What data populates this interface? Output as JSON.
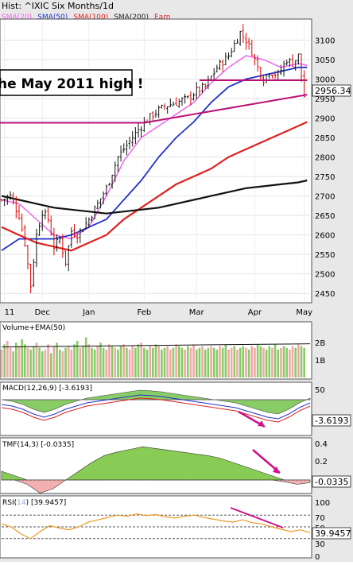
{
  "header": {
    "title": "Hist: ^IXIC Six Months/1d",
    "legend": [
      {
        "label": "SMA(20)",
        "color": "#ee66ee"
      },
      {
        "label": "SMA(50)",
        "color": "#2233cc"
      },
      {
        "label": "SMA(100)",
        "color": "#dd2222"
      },
      {
        "label": "SMA(200)",
        "color": "#222222"
      },
      {
        "label": "Earn",
        "color": "#dd2222"
      }
    ]
  },
  "annotation": {
    "banner_text": "he May 2011 high !",
    "last_price_label": "2956.34"
  },
  "colors": {
    "up": "#111111",
    "down": "#dd0000",
    "sma20": "#ee66ee",
    "sma50": "#2233cc",
    "sma100": "#dd2222",
    "sma200": "#111111",
    "trend": "#bb1177",
    "macd_fill": "#88cc66",
    "macd_neg_fill": "#f3b0b0",
    "tmf_fill": "#88cc55",
    "rsi_line": "#ee9922",
    "vol_up": "#88cc66",
    "vol_down": "#f0a8a8"
  },
  "chart_data": [
    {
      "type": "candlestick",
      "title": "^IXIC Six Months/1d",
      "y_ticks": [
        2450,
        2500,
        2550,
        2600,
        2650,
        2700,
        2750,
        2800,
        2850,
        2900,
        2950,
        3000,
        3050,
        3100
      ],
      "ylim": [
        2430,
        3150
      ],
      "x_labels": [
        {
          "label": "11",
          "day": 1
        },
        {
          "label": "Dec",
          "day": 14
        },
        {
          "label": "Jan",
          "day": 30
        },
        {
          "label": "Feb",
          "day": 49
        },
        {
          "label": "Mar",
          "day": 67
        },
        {
          "label": "Apr",
          "day": 87
        },
        {
          "label": "May",
          "day": 104
        }
      ],
      "num_days": 107,
      "ohlc_points": [
        [
          0,
          2690
        ],
        [
          3,
          2700
        ],
        [
          6,
          2650
        ],
        [
          8,
          2580
        ],
        [
          10,
          2470
        ],
        [
          12,
          2600
        ],
        [
          14,
          2660
        ],
        [
          16,
          2640
        ],
        [
          18,
          2570
        ],
        [
          20,
          2590
        ],
        [
          22,
          2530
        ],
        [
          24,
          2610
        ],
        [
          26,
          2600
        ],
        [
          28,
          2620
        ],
        [
          30,
          2640
        ],
        [
          33,
          2680
        ],
        [
          36,
          2720
        ],
        [
          40,
          2800
        ],
        [
          44,
          2840
        ],
        [
          48,
          2880
        ],
        [
          52,
          2910
        ],
        [
          56,
          2930
        ],
        [
          60,
          2940
        ],
        [
          64,
          2950
        ],
        [
          67,
          2970
        ],
        [
          70,
          2980
        ],
        [
          74,
          3030
        ],
        [
          78,
          3060
        ],
        [
          82,
          3120
        ],
        [
          84,
          3100
        ],
        [
          86,
          3070
        ],
        [
          88,
          3030
        ],
        [
          90,
          3000
        ],
        [
          92,
          3020
        ],
        [
          95,
          3010
        ],
        [
          98,
          3050
        ],
        [
          100,
          3040
        ],
        [
          102,
          3060
        ],
        [
          104,
          2956
        ]
      ],
      "series": [
        {
          "name": "SMA(20)",
          "points": [
            [
              0,
              2690
            ],
            [
              6,
              2680
            ],
            [
              12,
              2640
            ],
            [
              18,
              2600
            ],
            [
              24,
              2590
            ],
            [
              30,
              2620
            ],
            [
              36,
              2700
            ],
            [
              42,
              2790
            ],
            [
              48,
              2850
            ],
            [
              54,
              2880
            ],
            [
              60,
              2910
            ],
            [
              66,
              2940
            ],
            [
              72,
              2990
            ],
            [
              78,
              3030
            ],
            [
              84,
              3060
            ],
            [
              90,
              3050
            ],
            [
              96,
              3030
            ],
            [
              102,
              3040
            ],
            [
              105,
              3035
            ]
          ]
        },
        {
          "name": "SMA(50)",
          "points": [
            [
              0,
              2560
            ],
            [
              6,
              2590
            ],
            [
              12,
              2590
            ],
            [
              18,
              2590
            ],
            [
              24,
              2600
            ],
            [
              30,
              2620
            ],
            [
              36,
              2640
            ],
            [
              42,
              2690
            ],
            [
              48,
              2740
            ],
            [
              54,
              2800
            ],
            [
              60,
              2850
            ],
            [
              66,
              2890
            ],
            [
              72,
              2940
            ],
            [
              78,
              2980
            ],
            [
              84,
              3000
            ],
            [
              90,
              3010
            ],
            [
              96,
              3020
            ],
            [
              102,
              3030
            ],
            [
              105,
              3030
            ]
          ]
        },
        {
          "name": "SMA(100)",
          "points": [
            [
              0,
              2620
            ],
            [
              6,
              2600
            ],
            [
              12,
              2580
            ],
            [
              18,
              2570
            ],
            [
              24,
              2560
            ],
            [
              30,
              2580
            ],
            [
              36,
              2600
            ],
            [
              42,
              2640
            ],
            [
              48,
              2670
            ],
            [
              54,
              2700
            ],
            [
              60,
              2730
            ],
            [
              66,
              2750
            ],
            [
              72,
              2770
            ],
            [
              78,
              2800
            ],
            [
              84,
              2820
            ],
            [
              90,
              2840
            ],
            [
              96,
              2860
            ],
            [
              102,
              2880
            ],
            [
              105,
              2890
            ]
          ]
        },
        {
          "name": "SMA(200)",
          "points": [
            [
              0,
              2700
            ],
            [
              6,
              2690
            ],
            [
              12,
              2680
            ],
            [
              18,
              2670
            ],
            [
              24,
              2665
            ],
            [
              30,
              2660
            ],
            [
              36,
              2655
            ],
            [
              42,
              2660
            ],
            [
              48,
              2665
            ],
            [
              54,
              2670
            ],
            [
              60,
              2680
            ],
            [
              66,
              2690
            ],
            [
              72,
              2700
            ],
            [
              78,
              2710
            ],
            [
              84,
              2720
            ],
            [
              90,
              2725
            ],
            [
              96,
              2730
            ],
            [
              102,
              2735
            ],
            [
              105,
              2740
            ]
          ]
        }
      ],
      "trendlines": [
        {
          "from": [
            -5,
            2888
          ],
          "to": [
            49,
            2888
          ]
        },
        {
          "from": [
            49,
            2888
          ],
          "to": [
            105,
            2960
          ]
        },
        {
          "from": [
            68,
            2997
          ],
          "to": [
            105,
            2997
          ]
        }
      ]
    },
    {
      "type": "bar",
      "title": "Volume+EMA(50)",
      "y_ticks": [
        "2B",
        "1B"
      ],
      "ylim": [
        0,
        2.6
      ],
      "values": [
        1.6,
        1.9,
        2.1,
        1.7,
        1.5,
        2.0,
        1.8,
        2.2,
        1.9,
        1.7,
        1.6,
        1.8,
        2.0,
        1.7,
        1.5,
        1.6,
        1.9,
        1.4,
        1.8,
        2.0,
        1.6,
        1.5,
        1.7,
        1.8,
        1.6,
        1.9,
        2.1,
        1.7,
        1.8,
        2.3,
        1.9,
        1.7,
        1.6,
        1.8,
        2.0,
        1.7,
        1.6,
        1.9,
        1.8,
        1.7,
        1.6,
        1.8,
        1.9,
        1.7,
        1.6,
        1.8,
        1.7,
        1.9,
        2.0,
        1.7,
        1.6,
        1.8,
        1.7,
        1.9,
        1.8,
        1.6,
        1.7,
        1.8,
        1.6,
        1.7,
        1.9,
        1.8,
        1.7,
        1.6,
        1.8,
        1.7,
        1.9,
        1.6,
        1.7,
        1.8,
        1.6,
        1.7,
        1.8,
        1.7,
        1.6,
        1.8,
        1.7,
        1.9,
        1.6,
        1.7,
        1.8,
        1.6,
        1.7,
        1.8,
        1.7,
        1.6,
        1.8,
        1.7,
        1.9,
        1.8,
        1.7,
        1.6,
        1.8,
        1.7,
        1.9,
        1.6,
        1.7,
        1.8,
        1.7,
        1.6,
        1.8,
        1.7,
        1.9,
        1.8,
        1.7
      ],
      "ema": 1.75
    },
    {
      "type": "area",
      "title": "MACD(12,26,9)",
      "last_value": "-3.6193",
      "y_ticks": [
        "50"
      ],
      "ylim": [
        -90,
        70
      ]
    },
    {
      "type": "area",
      "title": "TMF(14,3)",
      "last_value": "-0.0335",
      "y_ticks": [
        "0.4",
        "0.2",
        "-0.0335"
      ],
      "ylim": [
        -0.25,
        0.45
      ]
    },
    {
      "type": "line",
      "title": "RSI(14)",
      "last_value": "39.9457",
      "y_ticks": [
        "100",
        "70",
        "50",
        "39.9457",
        "30",
        "0"
      ],
      "ylim": [
        0,
        100
      ]
    }
  ]
}
